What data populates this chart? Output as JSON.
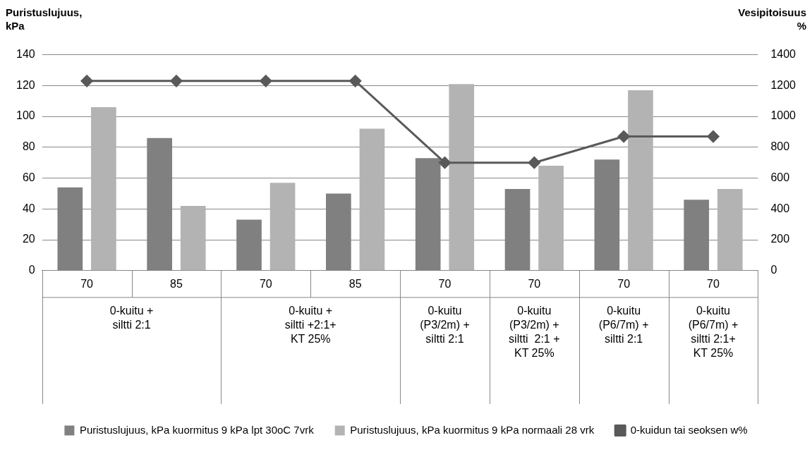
{
  "chart_data": {
    "type": "bar",
    "ylabel": "Puristuslujuus,\nkPa",
    "y2label": "Vesipitoisuus\n%",
    "categories": [
      "70",
      "85",
      "70",
      "85",
      "70",
      "70",
      "70",
      "70"
    ],
    "annotations": [
      "0-kuitu +\nsiltti 2:1",
      "0-kuitu +\nsiltti +2:1+\nKT 25%",
      "0-kuitu\n(P3/2m) +\nsiltti 2:1",
      "0-kuitu\n(P3/2m) +\nsiltti  2:1 +\nKT 25%",
      "0-kuitu\n(P6/7m) +\nsiltti 2:1",
      "0-kuitu\n(P6/7m) +\nsiltti 2:1+\nKT 25%"
    ],
    "series": [
      {
        "name": "Puristuslujuus, kPa kuormitus 9 kPa lpt 30oC 7vrk",
        "color": "#808080",
        "values": [
          54,
          86,
          33,
          50,
          73,
          53,
          72,
          46
        ]
      },
      {
        "name": "Puristuslujuus, kPa kuormitus 9 kPa normaali 28 vrk",
        "color": "#b3b3b3",
        "values": [
          106,
          42,
          57,
          92,
          121,
          68,
          117,
          53
        ]
      },
      {
        "name": "0-kuidun tai seoksen w%",
        "type": "line",
        "axis": "y2",
        "color": "#595959",
        "marker": "diamond",
        "values": [
          1230,
          1230,
          1230,
          1230,
          700,
          700,
          870,
          870
        ]
      }
    ],
    "ylim": [
      0,
      140
    ],
    "yticks": [
      0,
      20,
      40,
      60,
      80,
      100,
      120,
      140
    ],
    "y2lim": [
      0,
      1400
    ],
    "y2ticks": [
      0,
      200,
      400,
      600,
      800,
      1000,
      1200,
      1400
    ],
    "grid": "y",
    "legend": "bottom"
  }
}
